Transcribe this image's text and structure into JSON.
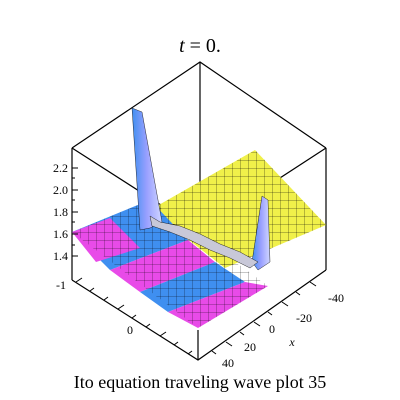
{
  "chart_data": {
    "type": "surface",
    "title": {
      "variable": "t",
      "equals": " = 0."
    },
    "caption": "Ito equation  traveling wave plot 35",
    "x_axis": {
      "label": "x",
      "ticks": [
        "-40",
        "-20",
        "0",
        "20",
        "40"
      ]
    },
    "y_axis": {
      "ticks": [
        "-1",
        "0"
      ]
    },
    "z_axis": {
      "ticks": [
        "2.2",
        "2.0",
        "1.8",
        "1.6",
        "1.4"
      ]
    },
    "surface": {
      "description": "Piecewise-constant surface with two sharp spikes along a diagonal step",
      "low_level": 1.55,
      "high_level": 1.9,
      "spike_peak": 2.3,
      "colors": {
        "blue": "#3f8ff0",
        "magenta": "#e84be8",
        "yellow": "#f0f04a",
        "mesh": "#000000"
      }
    }
  }
}
